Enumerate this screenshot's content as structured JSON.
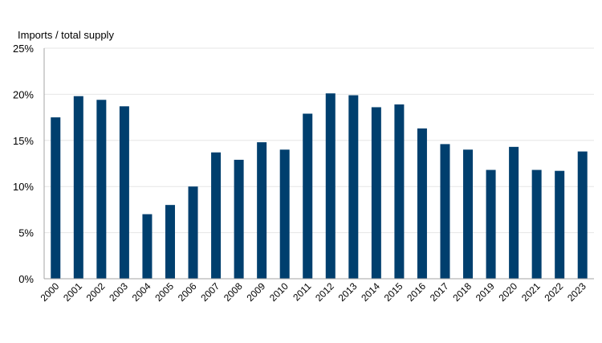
{
  "chart_data": {
    "type": "bar",
    "title": "",
    "ylabel": "Imports / total supply",
    "xlabel": "",
    "ylim": [
      0,
      25
    ],
    "yticks": [
      "0%",
      "5%",
      "10%",
      "15%",
      "20%",
      "25%"
    ],
    "grid": true,
    "bar_color": "#003f6e",
    "categories": [
      "2000",
      "2001",
      "2002",
      "2003",
      "2004",
      "2005",
      "2006",
      "2007",
      "2008",
      "2009",
      "2010",
      "2011",
      "2012",
      "2013",
      "2014",
      "2015",
      "2016",
      "2017",
      "2018",
      "2019",
      "2020",
      "2021",
      "2022",
      "2023"
    ],
    "values": [
      17.5,
      19.8,
      19.4,
      18.7,
      7.0,
      8.0,
      10.0,
      13.7,
      12.9,
      14.8,
      14.0,
      17.9,
      20.1,
      19.9,
      18.6,
      18.9,
      16.3,
      14.6,
      14.0,
      11.8,
      14.3,
      11.8,
      11.7,
      13.8
    ]
  }
}
